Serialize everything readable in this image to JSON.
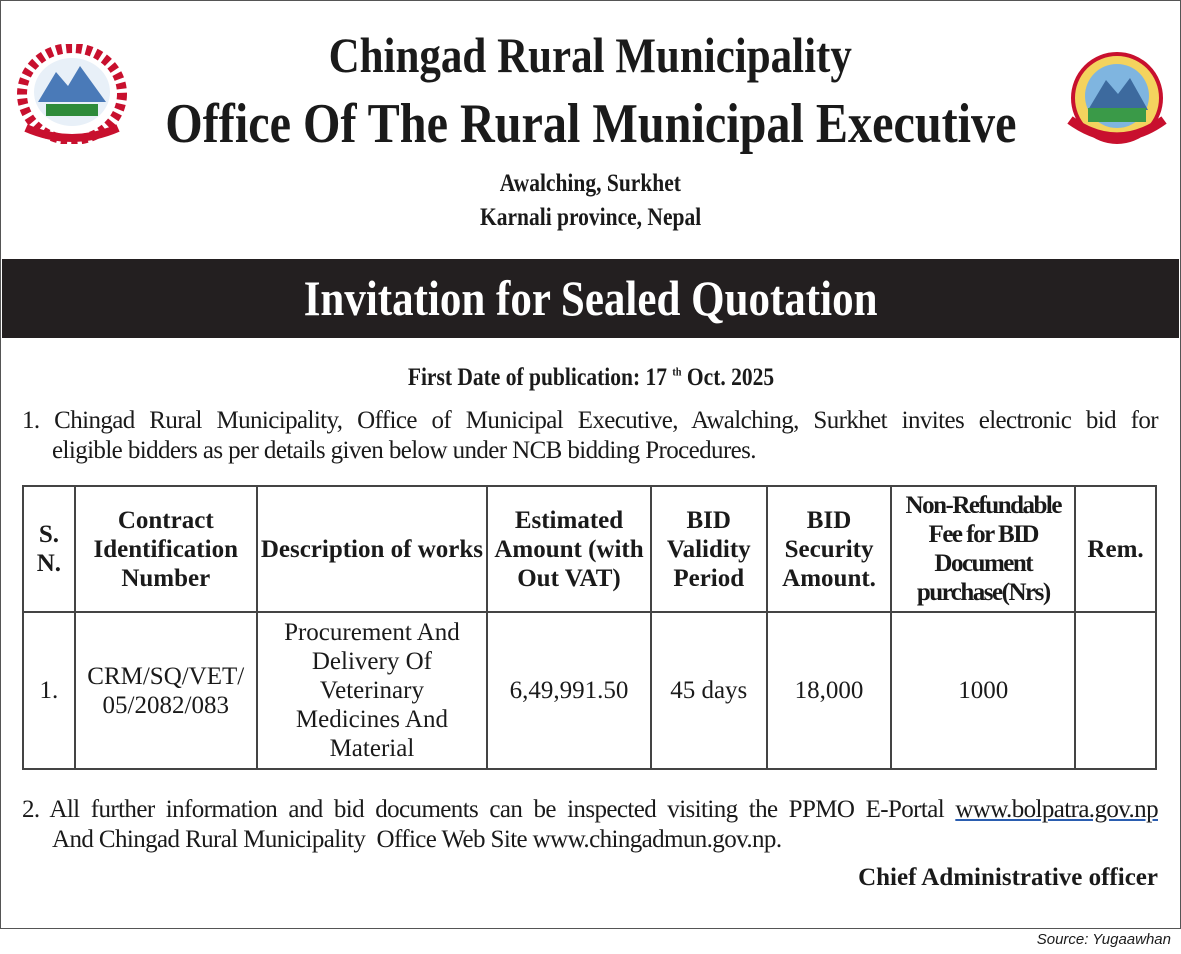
{
  "header": {
    "title": "Chingad Rural Municipality",
    "subtitle": "Office Of The Rural Municipal Executive",
    "address_line1": "Awalching, Surkhet",
    "address_line2": "Karnali province, Nepal"
  },
  "banner": "Invitation for Sealed Quotation",
  "publication": {
    "label": "First Date of publication: 17",
    "sup": "th",
    "rest": " Oct. 2025"
  },
  "para1": {
    "line1": "1. Chingad Rural Municipality, Office of Municipal Executive, Awalching, Surkhet invites electronic bid for",
    "line2": "eligible bidders as per details given below under NCB bidding Procedures."
  },
  "table": {
    "headers": [
      "S. N.",
      "Contract Identification Number",
      "Description of works",
      "Estimated Amount (with Out VAT)",
      "BID Validity Period",
      "BID Security Amount.",
      "Non-Refundable Fee for BID Document purchase(Nrs)",
      "Rem."
    ],
    "rows": [
      [
        "1.",
        "CRM/SQ/VET/ 05/2082/083",
        "Procurement And Delivery Of Veterinary Medicines And Material",
        "6,49,991.50",
        "45 days",
        "18,000",
        "1000",
        ""
      ]
    ]
  },
  "para2": {
    "line1_prefix": "2. All further information and bid documents can be inspected visiting the PPMO E-Portal ",
    "link": "www.bolpatra.gov.np",
    "line2": "And Chingad Rural Municipality  Office Web Site www.chingadmun.gov.np."
  },
  "signature": "Chief Administrative officer",
  "source": "Source: Yugaawhan",
  "colors": {
    "banner": "#231f20",
    "link_underline": "#2a5db0"
  }
}
